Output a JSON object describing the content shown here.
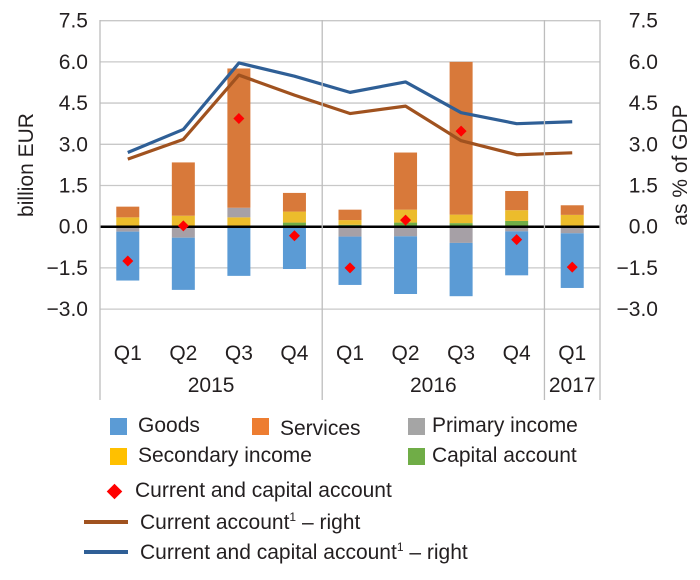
{
  "chart_data": {
    "type": "bar",
    "title": "",
    "ylabel": "billion EUR",
    "ylabel_right": "as % of GDP",
    "ylim": [
      -4.5,
      7.5
    ],
    "ylim_right": [
      -4.5,
      7.5
    ],
    "yticks": [
      "7.5",
      "6.0",
      "4.5",
      "3.0",
      "1.5",
      "0.0",
      "−1.5",
      "−3.0"
    ],
    "ytick_values": [
      7.5,
      6.0,
      4.5,
      3.0,
      1.5,
      0.0,
      -1.5,
      -3.0
    ],
    "grid": true,
    "stacked": true,
    "categories": [
      "Q1",
      "Q2",
      "Q3",
      "Q4",
      "Q1",
      "Q2",
      "Q3",
      "Q4",
      "Q1"
    ],
    "groups": [
      {
        "label": "2015",
        "count": 4
      },
      {
        "label": "2016",
        "count": 4
      },
      {
        "label": "2017",
        "count": 1
      }
    ],
    "series": [
      {
        "name": "Goods",
        "kind": "bar",
        "color": "#5b9bd5",
        "values": [
          -1.78,
          -1.9,
          -1.79,
          -1.54,
          -1.76,
          -2.1,
          -1.94,
          -1.6,
          -1.99
        ]
      },
      {
        "name": "Services",
        "kind": "bar",
        "color": "#d8793a",
        "values": [
          0.39,
          1.94,
          5.07,
          0.68,
          0.38,
          2.08,
          5.56,
          0.7,
          0.35
        ]
      },
      {
        "name": "Primary income",
        "kind": "bar",
        "color": "#a6a0a6",
        "values": [
          -0.18,
          -0.4,
          0.35,
          0.0,
          -0.36,
          -0.35,
          -0.59,
          -0.17,
          -0.24
        ]
      },
      {
        "name": "Secondary income",
        "kind": "bar",
        "color": "#ecbc2c",
        "values": [
          0.34,
          0.4,
          0.34,
          0.4,
          0.17,
          0.47,
          0.31,
          0.39,
          0.43
        ]
      },
      {
        "name": "Capital account",
        "kind": "bar",
        "color": "#70ad47",
        "values": [
          0.0,
          0.0,
          0.0,
          0.15,
          0.07,
          0.15,
          0.13,
          0.21,
          0.0
        ]
      },
      {
        "name": "Current and capital account",
        "kind": "marker",
        "color": "#ff0000",
        "values": [
          -1.25,
          0.03,
          3.94,
          -0.33,
          -1.5,
          0.24,
          3.48,
          -0.47,
          -1.47
        ]
      },
      {
        "name": "Current account¹ – right",
        "kind": "line",
        "axis": "right",
        "color": "#a0521f",
        "values": [
          2.46,
          3.18,
          5.52,
          4.79,
          4.12,
          4.39,
          3.13,
          2.62,
          2.69
        ]
      },
      {
        "name": "Current and capital account¹ – right",
        "kind": "line",
        "axis": "right",
        "color": "#2f5f96",
        "values": [
          2.7,
          3.54,
          5.96,
          5.48,
          4.89,
          5.27,
          4.15,
          3.75,
          3.82
        ]
      }
    ],
    "legend": {
      "placement": "bottom",
      "goods": "Goods",
      "services": "Services",
      "primary": "Primary income",
      "secondary": "Secondary income",
      "capital": "Capital account",
      "diamond": "Current and capital account",
      "ca_line": "Current account",
      "ca_line_suffix": " – right",
      "cca_line": "Current and capital account",
      "cca_line_suffix": " – right",
      "footnote_mark": "1"
    },
    "legend_colors": {
      "goods": "#5b9bd5",
      "services": "#ed7d31",
      "primary": "#a5a5a5",
      "secondary": "#ffc000",
      "capital": "#70ad47",
      "diamond": "#ff0000",
      "ca_line": "#a0521f",
      "cca_line": "#2f5f96"
    }
  }
}
